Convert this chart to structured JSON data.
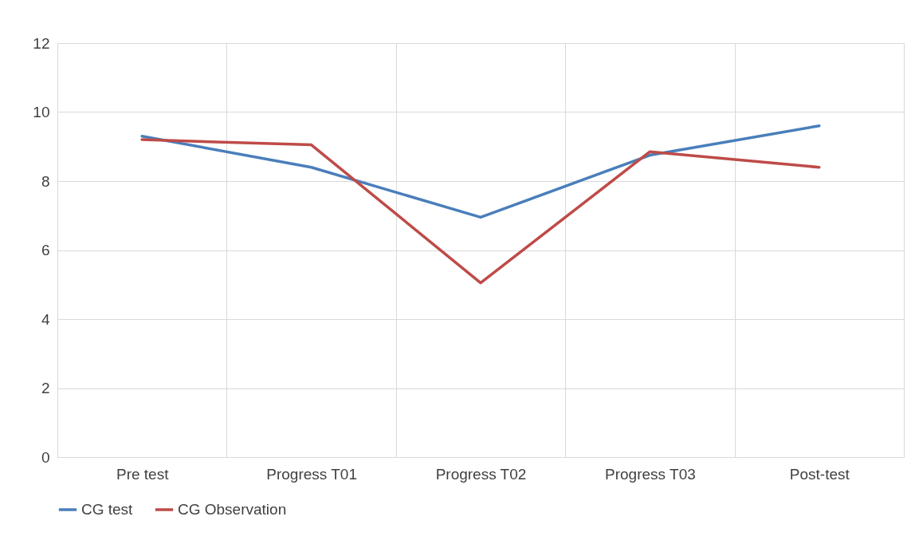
{
  "chart_data": {
    "type": "line",
    "categories": [
      "Pre test",
      "Progress T01",
      "Progress T02",
      "Progress T03",
      "Post-test"
    ],
    "series": [
      {
        "name": "CG test",
        "color": "#4a7ebb",
        "values": [
          9.3,
          8.4,
          6.95,
          8.75,
          9.6
        ]
      },
      {
        "name": "CG Observation",
        "color": "#be4b48",
        "values": [
          9.2,
          9.05,
          5.05,
          8.85,
          8.4
        ]
      }
    ],
    "ylim": [
      0,
      12
    ],
    "yticks": [
      0,
      2,
      4,
      6,
      8,
      10,
      12
    ],
    "grid": true,
    "legend": "bottom",
    "marker": "none",
    "line_style": "solid"
  }
}
